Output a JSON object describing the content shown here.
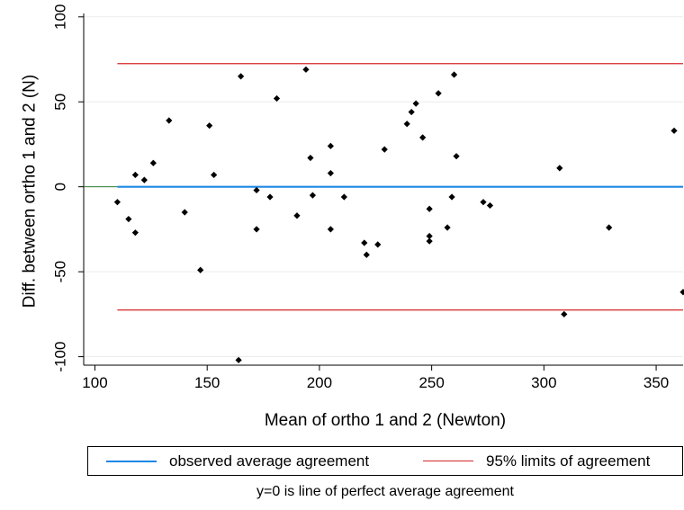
{
  "chart_data": {
    "type": "scatter",
    "xlabel": "Mean of ortho 1 and 2 (Newton)",
    "ylabel": "Diff. between ortho 1 and 2 (N)",
    "xlim": [
      95,
      362
    ],
    "ylim": [
      -105,
      102
    ],
    "xticks": [
      "100",
      "150",
      "200",
      "250",
      "300",
      "350"
    ],
    "xtick_values": [
      100,
      150,
      200,
      250,
      300,
      350
    ],
    "yticks": [
      "-100",
      "-50",
      "0",
      "50",
      "100"
    ],
    "ytick_values": [
      -100,
      -50,
      0,
      50,
      100
    ],
    "grid": "horizontal",
    "points": [
      [
        110,
        -9
      ],
      [
        115,
        -19
      ],
      [
        118,
        7
      ],
      [
        118,
        -27
      ],
      [
        122,
        4
      ],
      [
        126,
        14
      ],
      [
        133,
        39
      ],
      [
        140,
        -15
      ],
      [
        147,
        -49
      ],
      [
        151,
        36
      ],
      [
        153,
        7
      ],
      [
        164,
        -102
      ],
      [
        165,
        65
      ],
      [
        172,
        -2
      ],
      [
        172,
        -25
      ],
      [
        178,
        -6
      ],
      [
        181,
        52
      ],
      [
        190,
        -17
      ],
      [
        194,
        69
      ],
      [
        196,
        17
      ],
      [
        197,
        -5
      ],
      [
        205,
        8
      ],
      [
        205,
        24
      ],
      [
        205,
        -25
      ],
      [
        211,
        -6
      ],
      [
        220,
        -33
      ],
      [
        221,
        -40
      ],
      [
        226,
        -34
      ],
      [
        229,
        22
      ],
      [
        239,
        37
      ],
      [
        241,
        44
      ],
      [
        243,
        49
      ],
      [
        246,
        29
      ],
      [
        249,
        -13
      ],
      [
        249,
        -29
      ],
      [
        249,
        -32
      ],
      [
        253,
        55
      ],
      [
        257,
        -24
      ],
      [
        259,
        -6
      ],
      [
        260,
        66
      ],
      [
        261,
        18
      ],
      [
        273,
        -9
      ],
      [
        276,
        -11
      ],
      [
        307,
        11
      ],
      [
        309,
        -75
      ],
      [
        329,
        -24
      ],
      [
        358,
        33
      ],
      [
        362,
        -62
      ]
    ],
    "lines": [
      {
        "name": "observed average agreement",
        "y": 0,
        "x_range": [
          110,
          362
        ],
        "color": "#1e88e5"
      },
      {
        "name": "95% limits of agreement",
        "y": 72.5,
        "x_range": [
          110,
          362
        ],
        "color": "#d62728"
      },
      {
        "name": "95% limits of agreement",
        "y": -72.5,
        "x_range": [
          110,
          362
        ],
        "color": "#d62728"
      }
    ],
    "reference_line": {
      "y": 0,
      "x_range": [
        95,
        110
      ],
      "color": "#2e7d32"
    },
    "legend": {
      "placement": "bottom",
      "items": [
        {
          "label": "observed average agreement",
          "color": "#1e88e5"
        },
        {
          "label": "95% limits of agreement",
          "color": "#d62728"
        }
      ]
    },
    "note": "y=0 is line of perfect average agreement"
  }
}
